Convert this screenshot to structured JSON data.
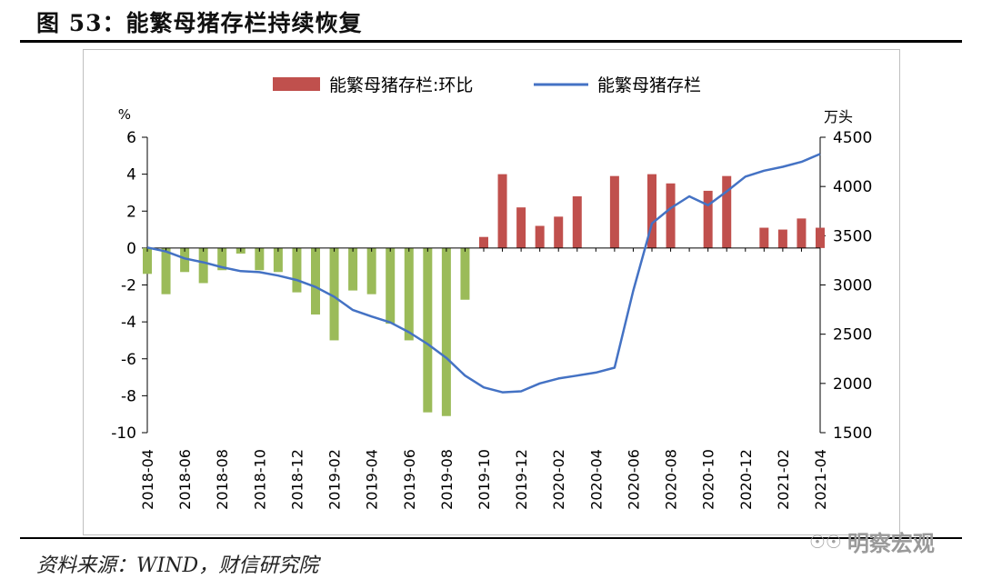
{
  "figure": {
    "title": "图 53：能繁母猪存栏持续恢复",
    "source": "资料来源：WIND，财信研究院",
    "watermark": "明察宏观"
  },
  "chart_data": {
    "type": "bar+line",
    "legend": [
      "能繁母猪存栏:环比",
      "能繁母猪存栏"
    ],
    "legend_position": "top",
    "left_axis_unit": "%",
    "right_axis_unit": "万头",
    "ylim_left": [
      -10,
      6
    ],
    "ylim_right": [
      1500,
      4500
    ],
    "yticks_left": [
      6,
      4,
      2,
      0,
      -2,
      -4,
      -6,
      -8,
      -10
    ],
    "yticks_right": [
      4500,
      4000,
      3500,
      3000,
      2500,
      2000,
      1500
    ],
    "x_tick_labels": [
      "2018-04",
      "2018-06",
      "2018-08",
      "2018-10",
      "2018-12",
      "2019-02",
      "2019-04",
      "2019-06",
      "2019-08",
      "2019-10",
      "2019-12",
      "2020-02",
      "2020-04",
      "2020-06",
      "2020-08",
      "2020-10",
      "2020-12",
      "2021-02",
      "2021-04"
    ],
    "months": [
      "2018-04",
      "2018-05",
      "2018-06",
      "2018-07",
      "2018-08",
      "2018-09",
      "2018-10",
      "2018-11",
      "2018-12",
      "2019-01",
      "2019-02",
      "2019-03",
      "2019-04",
      "2019-05",
      "2019-06",
      "2019-07",
      "2019-08",
      "2019-09",
      "2019-10",
      "2019-11",
      "2019-12",
      "2020-01",
      "2020-02",
      "2020-03",
      "2020-04",
      "2020-05",
      "2020-06",
      "2020-07",
      "2020-08",
      "2020-09",
      "2020-10",
      "2020-11",
      "2020-12",
      "2021-01",
      "2021-02",
      "2021-03",
      "2021-04"
    ],
    "series": [
      {
        "name": "能繁母猪存栏:环比",
        "type": "bar",
        "axis": "left",
        "colors": {
          "positive": "#c0504d",
          "negative": "#9bbb59"
        },
        "values": [
          -1.4,
          -2.5,
          -1.3,
          -1.9,
          -1.2,
          -0.3,
          -1.2,
          -1.3,
          -2.4,
          -3.6,
          -5.0,
          -2.3,
          -2.5,
          -4.1,
          -5.0,
          -8.9,
          -9.1,
          -2.8,
          0.6,
          4.0,
          2.2,
          1.2,
          1.7,
          2.8,
          null,
          3.9,
          null,
          4.0,
          3.5,
          null,
          3.1,
          3.9,
          null,
          1.1,
          1.0,
          1.6,
          1.1
        ]
      },
      {
        "name": "能繁母猪存栏",
        "type": "line",
        "axis": "right",
        "color": "#4472c4",
        "values": [
          3380,
          3340,
          3270,
          3230,
          3180,
          3140,
          3130,
          3095,
          3050,
          2980,
          2880,
          2745,
          2680,
          2620,
          2520,
          2400,
          2260,
          2080,
          1960,
          1910,
          1920,
          2000,
          2050,
          2080,
          2110,
          2160,
          2940,
          3625,
          3780,
          3900,
          3810,
          3950,
          4100,
          4160,
          4200,
          4250,
          4330
        ]
      }
    ]
  }
}
